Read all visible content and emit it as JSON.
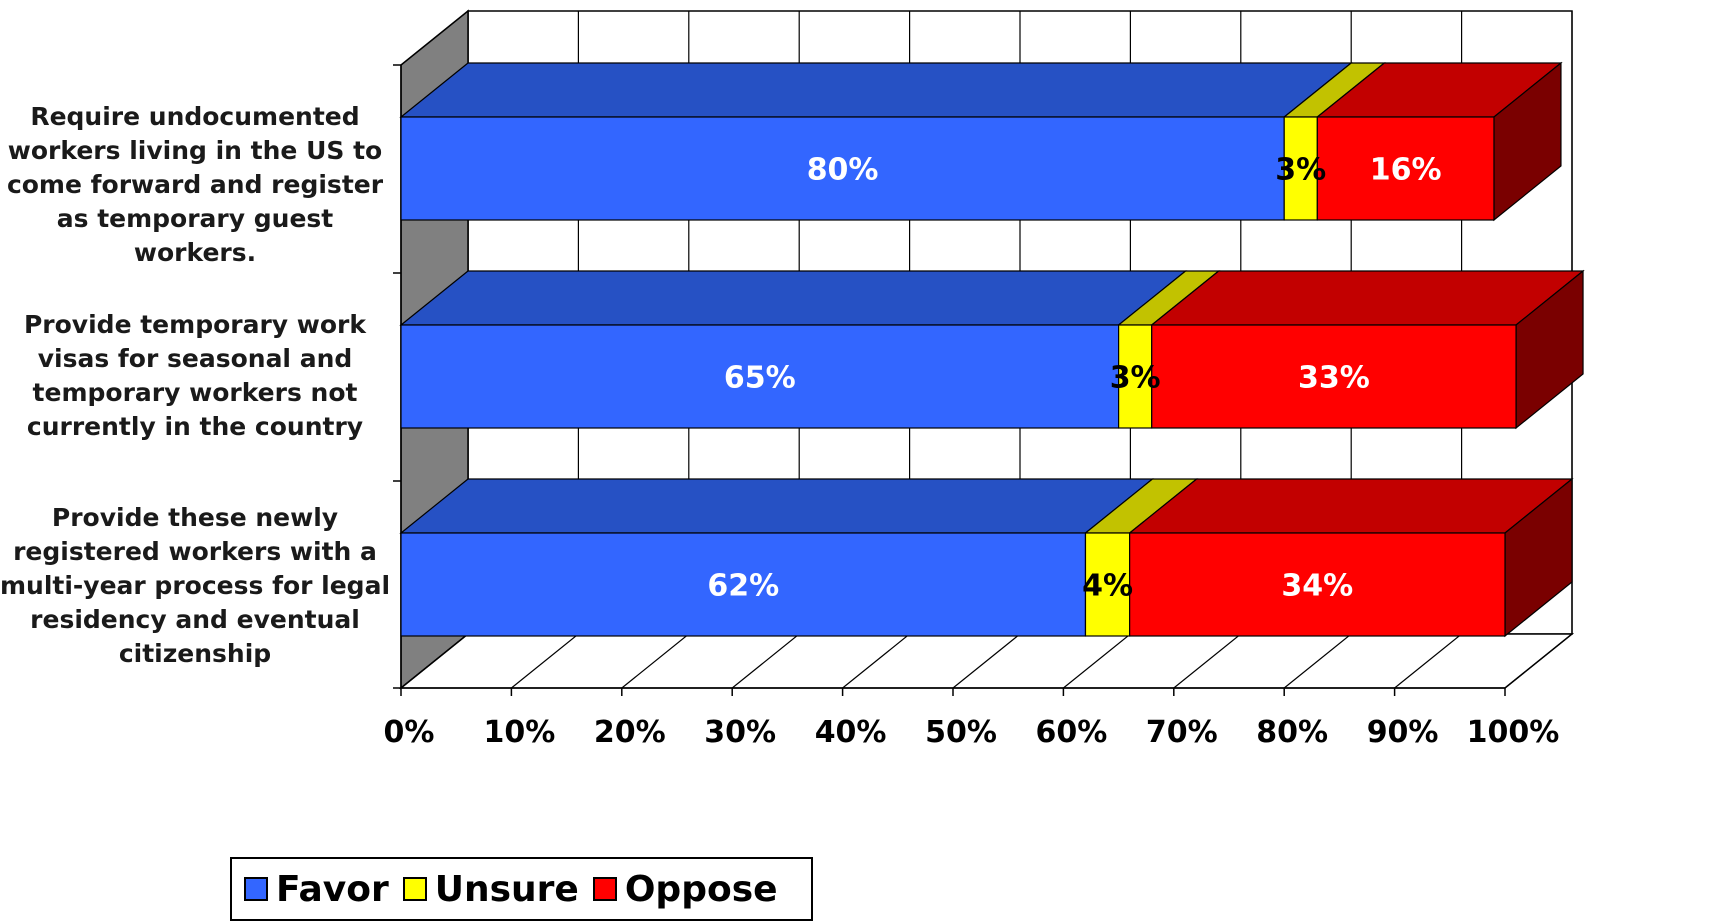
{
  "chart_data": {
    "type": "bar",
    "orientation": "horizontal",
    "stacked": "100%",
    "three_d": true,
    "categories": [
      "Require undocumented workers living in the US to come forward and register as temporary guest workers.",
      "Provide temporary work visas for seasonal and temporary workers not currently in the country",
      "Provide these newly registered workers with a multi-year process for legal residency and eventual citizenship"
    ],
    "category_lines": [
      [
        "Require undocumented",
        "workers living in the US to",
        "come forward and register",
        "as temporary guest workers."
      ],
      [
        "Provide temporary work",
        "visas for seasonal and",
        "temporary workers not",
        "currently in the country"
      ],
      [
        "Provide these newly",
        "registered workers with a",
        "multi-year process for legal",
        "residency and eventual",
        "citizenship"
      ]
    ],
    "series": [
      {
        "name": "Favor",
        "values": [
          80,
          65,
          62
        ],
        "labels": [
          "80%",
          "65%",
          "62%"
        ],
        "color": "#3366FF"
      },
      {
        "name": "Unsure",
        "values": [
          3,
          3,
          4
        ],
        "labels": [
          "3%",
          "3%",
          "4%"
        ],
        "color": "#FFFF00"
      },
      {
        "name": "Oppose",
        "values": [
          16,
          33,
          34
        ],
        "labels": [
          "16%",
          "33%",
          "34%"
        ],
        "color": "#FF0000"
      }
    ],
    "xlim": [
      0,
      100
    ],
    "x_ticks": [
      0,
      10,
      20,
      30,
      40,
      50,
      60,
      70,
      80,
      90,
      100
    ],
    "x_tick_labels": [
      "0%",
      "10%",
      "20%",
      "30%",
      "40%",
      "50%",
      "60%",
      "70%",
      "80%",
      "90%",
      "100%"
    ],
    "grid": true,
    "legend_position": "bottom-left",
    "title": "",
    "xlabel": "",
    "ylabel": ""
  },
  "legend": {
    "items": [
      {
        "name": "Favor",
        "color": "#3366FF"
      },
      {
        "name": "Unsure",
        "color": "#FFFF00"
      },
      {
        "name": "Oppose",
        "color": "#FF0000"
      }
    ]
  }
}
